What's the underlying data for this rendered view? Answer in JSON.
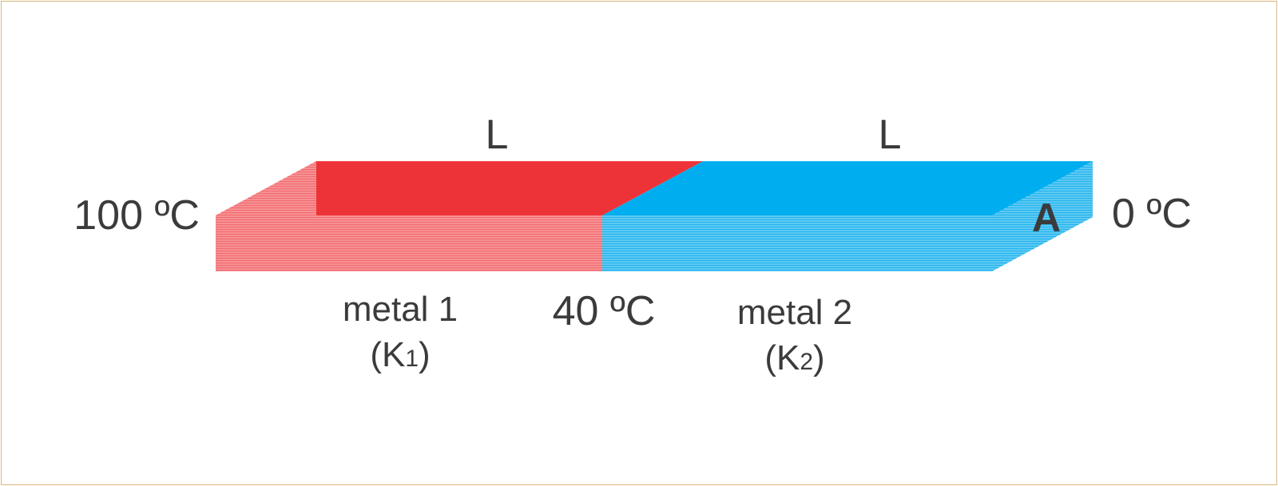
{
  "labels": {
    "length_left": "L",
    "length_right": "L",
    "temp_hot": "100 ºC",
    "temp_junction": "40 ºC",
    "temp_cold": "0 ºC",
    "area": "A",
    "metal1_name": "metal 1",
    "metal1_paren_open": "(",
    "metal1_k": "K",
    "metal1_sub": "1",
    "metal1_paren_close": ")",
    "metal2_name": "metal 2",
    "metal2_paren_open": "(",
    "metal2_k": "K",
    "metal2_sub": "2",
    "metal2_paren_close": ")"
  },
  "colors": {
    "metal1_top": "#ee3338",
    "metal1_side": "#f26b6f",
    "metal1_lines": "#f7a5a8",
    "metal2_top": "#00aeef",
    "metal2_side": "#29b9f0",
    "metal2_lines": "#8fd8f7",
    "frame_border": "#d9b77a",
    "text": "#3b3b3b"
  }
}
